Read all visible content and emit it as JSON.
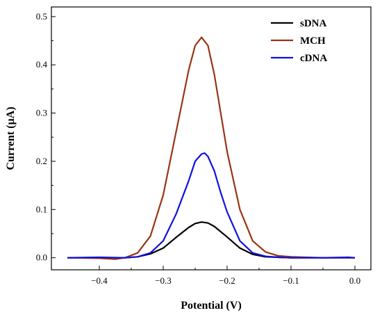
{
  "chart_data": {
    "type": "line",
    "xlabel": "Potential (V)",
    "ylabel": "Current (µA)",
    "xlim": [
      -0.475,
      0.025
    ],
    "ylim": [
      -0.025,
      0.52
    ],
    "x_ticks": [
      -0.4,
      -0.3,
      -0.2,
      -0.1,
      0.0
    ],
    "x_tick_labels": [
      "−0.4",
      "−0.3",
      "−0.2",
      "−0.1",
      "0.0"
    ],
    "y_ticks": [
      0.0,
      0.1,
      0.2,
      0.3,
      0.4,
      0.5
    ],
    "y_tick_labels": [
      "0.0",
      "0.1",
      "0.2",
      "0.3",
      "0.4",
      "0.5"
    ],
    "grid": false,
    "legend_position": "top-right",
    "series": [
      {
        "name": "sDNA",
        "color": "#000000",
        "x": [
          -0.45,
          -0.4,
          -0.36,
          -0.34,
          -0.32,
          -0.3,
          -0.28,
          -0.26,
          -0.25,
          -0.24,
          -0.23,
          -0.22,
          -0.2,
          -0.18,
          -0.16,
          -0.14,
          -0.12,
          -0.1,
          -0.05,
          0.0
        ],
        "y": [
          0.0,
          0.0,
          0.0,
          0.002,
          0.008,
          0.02,
          0.042,
          0.063,
          0.071,
          0.074,
          0.072,
          0.065,
          0.043,
          0.02,
          0.007,
          0.002,
          0.001,
          0.0,
          0.0,
          0.0
        ]
      },
      {
        "name": "MCH",
        "color": "#9a3412",
        "x": [
          -0.45,
          -0.4,
          -0.375,
          -0.36,
          -0.34,
          -0.32,
          -0.3,
          -0.28,
          -0.26,
          -0.25,
          -0.24,
          -0.23,
          -0.22,
          -0.21,
          -0.2,
          -0.18,
          -0.16,
          -0.14,
          -0.12,
          -0.1,
          -0.05,
          0.0
        ],
        "y": [
          0.0,
          -0.001,
          -0.003,
          0.0,
          0.01,
          0.045,
          0.13,
          0.26,
          0.39,
          0.44,
          0.457,
          0.44,
          0.38,
          0.3,
          0.22,
          0.1,
          0.035,
          0.012,
          0.004,
          0.002,
          0.0,
          0.0
        ]
      },
      {
        "name": "cDNA",
        "color": "#1010e0",
        "x": [
          -0.45,
          -0.4,
          -0.36,
          -0.34,
          -0.32,
          -0.3,
          -0.28,
          -0.26,
          -0.25,
          -0.24,
          -0.235,
          -0.23,
          -0.22,
          -0.21,
          -0.2,
          -0.18,
          -0.16,
          -0.14,
          -0.12,
          -0.1,
          -0.05,
          -0.01,
          0.0
        ],
        "y": [
          0.0,
          0.001,
          0.0,
          0.002,
          0.01,
          0.035,
          0.09,
          0.16,
          0.2,
          0.215,
          0.217,
          0.21,
          0.18,
          0.135,
          0.095,
          0.035,
          0.01,
          0.003,
          0.001,
          0.0,
          0.0,
          0.001,
          0.0
        ]
      }
    ]
  }
}
